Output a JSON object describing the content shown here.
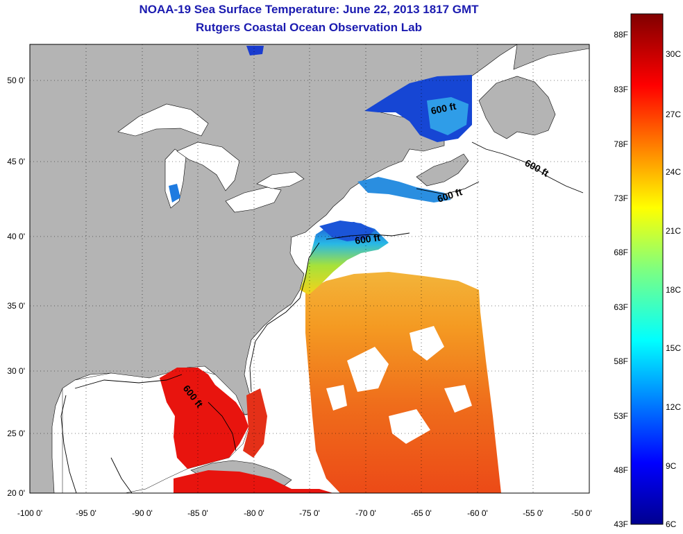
{
  "title_line1": "NOAA-19 Sea Surface Temperature:  June 22, 2013 1817 GMT",
  "title_line2": "Rutgers Coastal Ocean Observation Lab",
  "x_axis": {
    "ticks": [
      "-100 0'",
      "-95 0'",
      "-90 0'",
      "-85 0'",
      "-80 0'",
      "-75 0'",
      "-70 0'",
      "-65 0'",
      "-60 0'",
      "-55 0'",
      "-50 0'"
    ]
  },
  "y_axis": {
    "ticks": [
      "20 0'",
      "25 0'",
      "30 0'",
      "35 0'",
      "40 0'",
      "45 0'",
      "50 0'"
    ]
  },
  "contour_labels": [
    "600 ft",
    "600 ft",
    "600 ft",
    "600 ft",
    "600 ft"
  ],
  "colorbar": {
    "fahrenheit": [
      "88F",
      "83F",
      "78F",
      "73F",
      "68F",
      "63F",
      "58F",
      "53F",
      "48F",
      "43F"
    ],
    "celsius": [
      "30C",
      "27C",
      "24C",
      "21C",
      "18C",
      "15C",
      "12C",
      "9C",
      "6C"
    ]
  },
  "colors": {
    "land": "#b4b4b4",
    "title": "#1b1bb0",
    "gulf_sst": "#e8140e",
    "atlantic_sst": "#f08520"
  }
}
